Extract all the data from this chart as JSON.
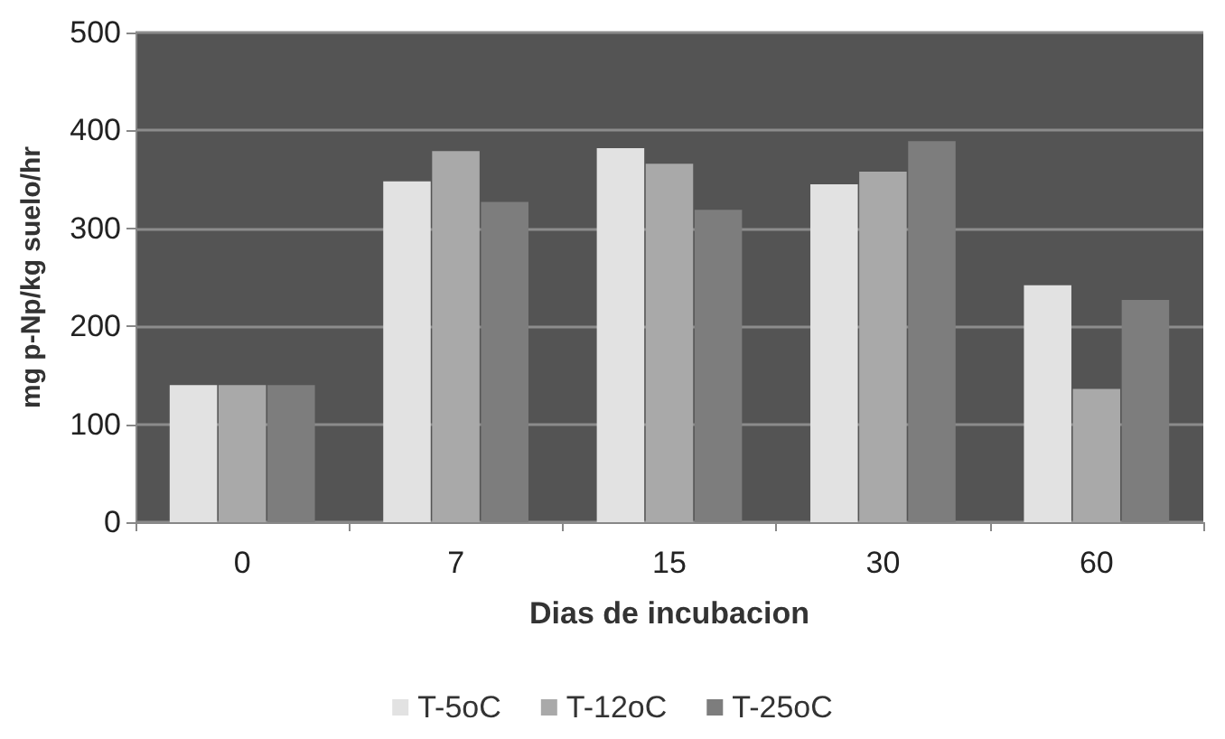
{
  "chart_data": {
    "type": "bar",
    "xlabel": "Dias de incubacion",
    "ylabel": "mg p-Np/kg suelo/hr",
    "categories": [
      "0",
      "7",
      "15",
      "30",
      "60"
    ],
    "series": [
      {
        "name": "T-5oC",
        "color": "#e2e2e2",
        "values": [
          140,
          348,
          382,
          345,
          242
        ]
      },
      {
        "name": "T-12oC",
        "color": "#a9a9a9",
        "values": [
          140,
          379,
          366,
          358,
          136
        ]
      },
      {
        "name": "T-25oC",
        "color": "#7d7d7d",
        "values": [
          140,
          327,
          319,
          389,
          227
        ]
      }
    ],
    "ylim": [
      0,
      500
    ],
    "yticks": [
      0,
      100,
      200,
      300,
      400,
      500
    ],
    "grid": "y",
    "legend": "bottom"
  }
}
